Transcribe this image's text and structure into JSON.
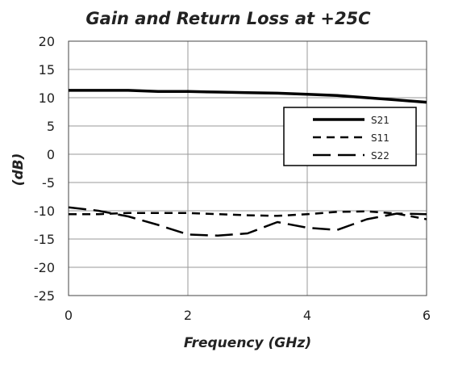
{
  "chart_data": {
    "type": "line",
    "title": "Gain and Return Loss at +25C",
    "xlabel": "Frequency (GHz)",
    "ylabel": "(dB)",
    "xlim": [
      0,
      6
    ],
    "ylim": [
      -25,
      20
    ],
    "xticks": [
      0,
      2,
      4,
      6
    ],
    "yticks": [
      20,
      15,
      10,
      5,
      0,
      -5,
      -10,
      -15,
      -20,
      -25
    ],
    "grid": true,
    "legend_position": "upper-right",
    "series": [
      {
        "name": "S21",
        "style": "solid",
        "color": "#000000",
        "x": [
          0,
          0.5,
          1.0,
          1.5,
          2.0,
          2.5,
          3.0,
          3.5,
          4.0,
          4.5,
          5.0,
          5.5,
          6.0
        ],
        "values": [
          11.3,
          11.3,
          11.3,
          11.1,
          11.1,
          11.0,
          10.9,
          10.8,
          10.6,
          10.4,
          10.0,
          9.6,
          9.2
        ]
      },
      {
        "name": "S11",
        "style": "dash",
        "color": "#000000",
        "x": [
          0,
          0.5,
          1.0,
          1.5,
          2.0,
          2.5,
          3.0,
          3.5,
          4.0,
          4.5,
          5.0,
          5.5,
          6.0
        ],
        "values": [
          -10.6,
          -10.6,
          -10.4,
          -10.4,
          -10.4,
          -10.6,
          -10.8,
          -10.9,
          -10.6,
          -10.2,
          -10.1,
          -10.5,
          -11.5
        ]
      },
      {
        "name": "S22",
        "style": "longdash",
        "color": "#000000",
        "x": [
          0,
          0.5,
          1.0,
          1.5,
          2.0,
          2.5,
          3.0,
          3.5,
          4.0,
          4.5,
          5.0,
          5.5,
          6.0
        ],
        "values": [
          -9.4,
          -10.0,
          -11.0,
          -12.5,
          -14.2,
          -14.4,
          -14.0,
          -12.0,
          -13.0,
          -13.4,
          -11.5,
          -10.5,
          -10.6
        ]
      }
    ]
  }
}
